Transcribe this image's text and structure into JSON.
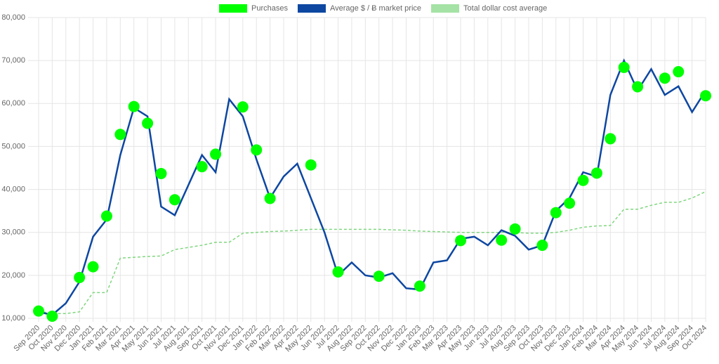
{
  "chart_data": {
    "type": "line",
    "categories": [
      "Sep 2020",
      "Oct 2020",
      "Nov 2020",
      "Dec 2020",
      "Jan 2021",
      "Feb 2021",
      "Mar 2021",
      "Apr 2021",
      "May 2021",
      "Jun 2021",
      "Jul 2021",
      "Aug 2021",
      "Sep 2021",
      "Oct 2021",
      "Nov 2021",
      "Dec 2021",
      "Jan 2022",
      "Feb 2022",
      "Mar 2022",
      "Apr 2022",
      "May 2022",
      "Jun 2022",
      "Jul 2022",
      "Aug 2022",
      "Sep 2022",
      "Oct 2022",
      "Nov 2022",
      "Dec 2022",
      "Jan 2023",
      "Feb 2023",
      "Mar 2023",
      "Apr 2023",
      "May 2023",
      "Jun 2023",
      "Jul 2023",
      "Aug 2023",
      "Sep 2023",
      "Oct 2023",
      "Nov 2023",
      "Dec 2023",
      "Jan 2024",
      "Feb 2024",
      "Mar 2024",
      "Apr 2024",
      "May 2024",
      "Jun 2024",
      "Jul 2024",
      "Aug 2024",
      "Sep 2024",
      "Oct 2024"
    ],
    "series": [
      {
        "name": "Purchases",
        "color": "#00ff00",
        "kind": "points",
        "values": [
          11700,
          10500,
          null,
          19500,
          22000,
          33800,
          52800,
          59300,
          55400,
          43700,
          37600,
          null,
          45300,
          48200,
          null,
          59200,
          49200,
          37900,
          null,
          null,
          45700,
          null,
          20800,
          null,
          null,
          19800,
          null,
          null,
          17500,
          null,
          null,
          28100,
          null,
          null,
          28200,
          30800,
          null,
          27000,
          34600,
          36800,
          42100,
          43800,
          51800,
          68400,
          63900,
          null,
          65900,
          67400,
          null,
          61800
        ]
      },
      {
        "name": "Average $ / Ƀ market price",
        "color": "#0d47a1",
        "kind": "line",
        "values": [
          11500,
          10800,
          13500,
          18500,
          29000,
          33000,
          48000,
          59000,
          57000,
          36000,
          34000,
          41000,
          48000,
          44000,
          61000,
          57000,
          47000,
          38000,
          43000,
          46000,
          38000,
          30000,
          20000,
          23000,
          20000,
          19500,
          20500,
          17000,
          16700,
          23000,
          23500,
          28500,
          29000,
          27000,
          30500,
          29200,
          26000,
          27000,
          35000,
          38000,
          44000,
          43000,
          62000,
          70000,
          63000,
          68000,
          62000,
          64000,
          58000,
          63000
        ]
      },
      {
        "name": "Total dollar cost average",
        "color": "#7fd67f",
        "kind": "dashed",
        "values": [
          11700,
          11100,
          11100,
          11500,
          16000,
          16000,
          24000,
          24200,
          24400,
          24500,
          26000,
          26500,
          27000,
          27700,
          27700,
          29800,
          30000,
          30200,
          30300,
          30500,
          30700,
          30700,
          30700,
          30700,
          30700,
          30700,
          30600,
          30500,
          30300,
          30200,
          30100,
          30000,
          30000,
          30000,
          30000,
          30000,
          29800,
          29800,
          30000,
          30500,
          31200,
          31500,
          31600,
          35400,
          35400,
          36300,
          37000,
          37000,
          38000,
          39500
        ]
      }
    ],
    "ylim": [
      10000,
      80000
    ],
    "yticks": [
      {
        "value": 10000,
        "label": "10,000"
      },
      {
        "value": 20000,
        "label": "20,000"
      },
      {
        "value": 30000,
        "label": "30,000"
      },
      {
        "value": 40000,
        "label": "40,000"
      },
      {
        "value": 50000,
        "label": "50,000"
      },
      {
        "value": 60000,
        "label": "60,000"
      },
      {
        "value": 70000,
        "label": "70,000"
      },
      {
        "value": 80000,
        "label": "80,000"
      }
    ],
    "grid": true,
    "legend": "top"
  }
}
